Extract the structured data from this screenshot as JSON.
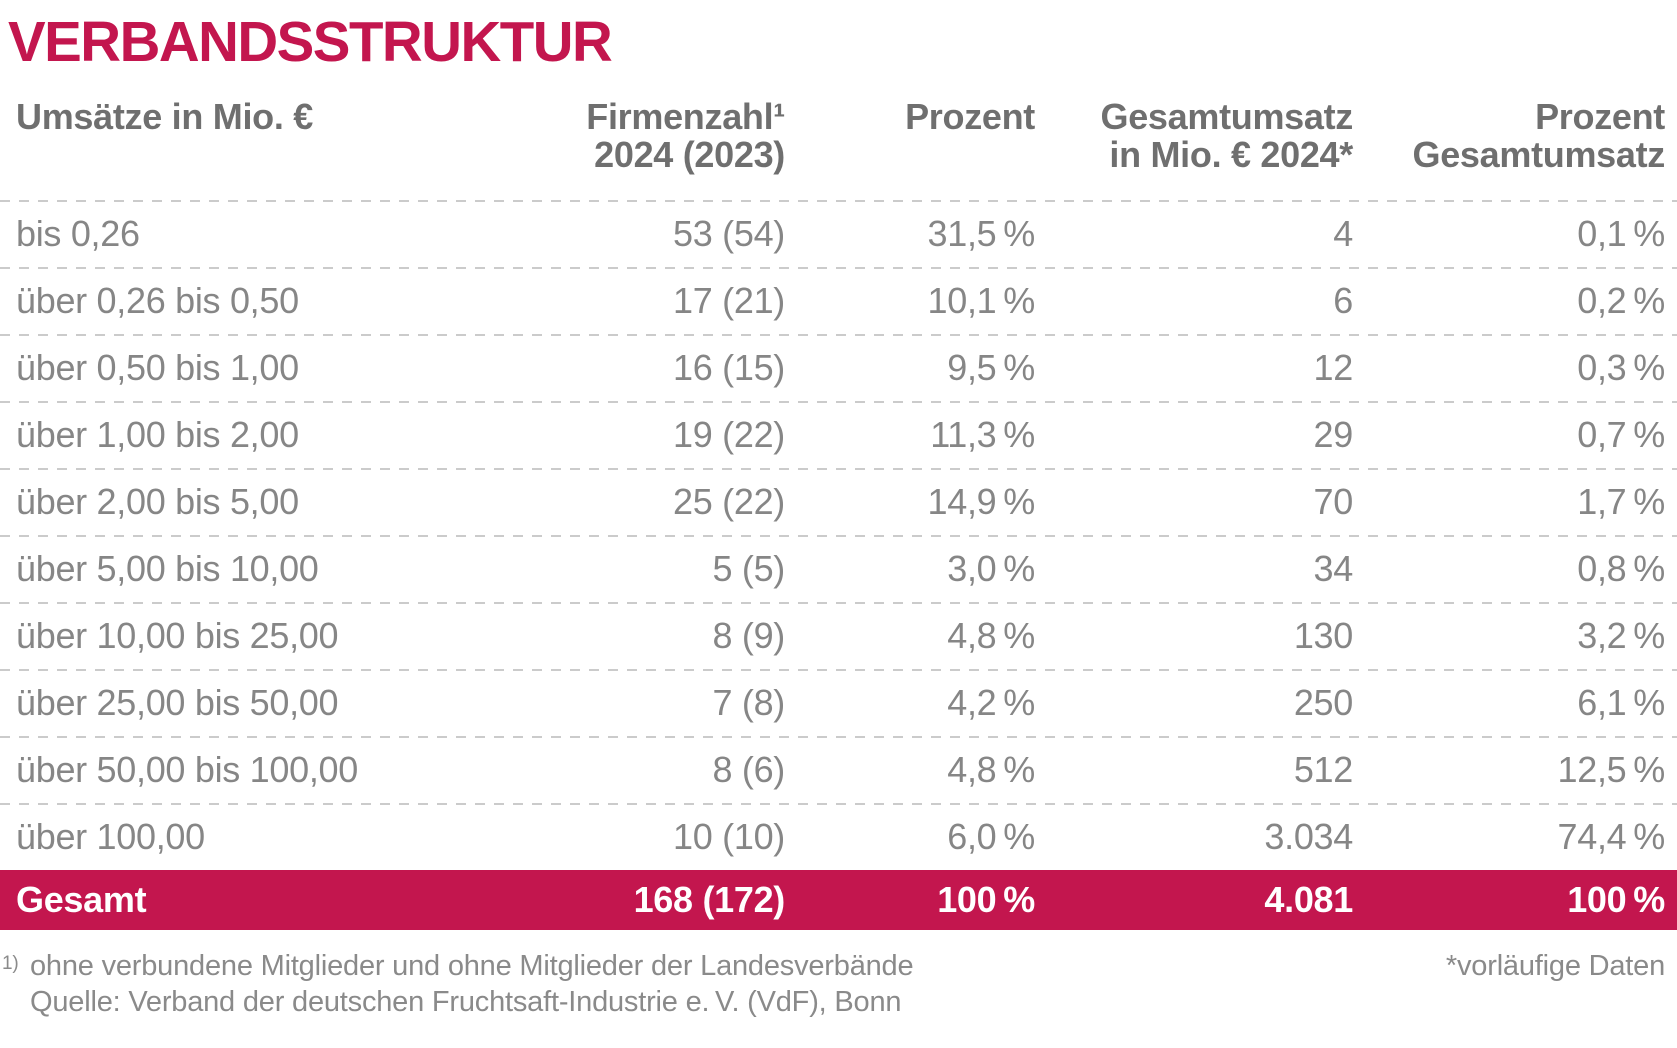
{
  "colors": {
    "accent": "#C3164E",
    "header_text": "#6F6F6F",
    "body_text": "#868686",
    "footnote_text": "#8A8A8A",
    "dash": "#CBCBCB",
    "total_text": "#FFFFFF"
  },
  "title": "VERBANDSSTRUKTUR",
  "table": {
    "header": {
      "col1_line1": "Umsätze in Mio. €",
      "col2_line1": "Firmenzahl¹",
      "col2_line2": "2024 (2023)",
      "col3_line1": "Prozent",
      "col4_line1": "Gesamtumsatz",
      "col4_line2": "in Mio. € 2024*",
      "col5_line1": "Prozent",
      "col5_line2": "Gesamtumsatz"
    },
    "rows": [
      {
        "range": "bis 0,26",
        "firms": "53 (54)",
        "percent": "31,5 %",
        "revenue": "4",
        "revenue_percent": "0,1 %"
      },
      {
        "range": "über 0,26 bis 0,50",
        "firms": "17 (21)",
        "percent": "10,1 %",
        "revenue": "6",
        "revenue_percent": "0,2 %"
      },
      {
        "range": "über 0,50 bis 1,00",
        "firms": "16 (15)",
        "percent": "9,5 %",
        "revenue": "12",
        "revenue_percent": "0,3 %"
      },
      {
        "range": "über 1,00 bis 2,00",
        "firms": "19 (22)",
        "percent": "11,3 %",
        "revenue": "29",
        "revenue_percent": "0,7 %"
      },
      {
        "range": "über 2,00 bis 5,00",
        "firms": "25 (22)",
        "percent": "14,9 %",
        "revenue": "70",
        "revenue_percent": "1,7 %"
      },
      {
        "range": "über 5,00 bis 10,00",
        "firms": "5 (5)",
        "percent": "3,0 %",
        "revenue": "34",
        "revenue_percent": "0,8 %"
      },
      {
        "range": "über 10,00 bis 25,00",
        "firms": "8 (9)",
        "percent": "4,8 %",
        "revenue": "130",
        "revenue_percent": "3,2 %"
      },
      {
        "range": "über 25,00 bis 50,00",
        "firms": "7 (8)",
        "percent": "4,2 %",
        "revenue": "250",
        "revenue_percent": "6,1 %"
      },
      {
        "range": "über 50,00 bis 100,00",
        "firms": "8 (6)",
        "percent": "4,8 %",
        "revenue": "512",
        "revenue_percent": "12,5 %"
      },
      {
        "range": "über 100,00",
        "firms": "10 (10)",
        "percent": "6,0 %",
        "revenue": "3.034",
        "revenue_percent": "74,4 %"
      }
    ],
    "total": {
      "range": "Gesamt",
      "firms": "168 (172)",
      "percent": "100 %",
      "revenue": "4.081",
      "revenue_percent": "100 %"
    }
  },
  "footnotes": {
    "marker": "1)",
    "note1": "ohne verbundene Mitglieder und ohne Mitglieder der Landesverbände",
    "note2": "Quelle: Verband der deutschen Fruchtsaft-Industrie e. V. (VdF), Bonn",
    "right_note": "*vorläufige Daten"
  },
  "chart_data": {
    "type": "table",
    "title": "VERBANDSSTRUKTUR",
    "columns": [
      "Umsätze in Mio. €",
      "Firmenzahl 2024 (2023)",
      "Prozent",
      "Gesamtumsatz in Mio. € 2024*",
      "Prozent Gesamtumsatz"
    ],
    "categories": [
      "bis 0,26",
      "über 0,26 bis 0,50",
      "über 0,50 bis 1,00",
      "über 1,00 bis 2,00",
      "über 2,00 bis 5,00",
      "über 5,00 bis 10,00",
      "über 10,00 bis 25,00",
      "über 25,00 bis 50,00",
      "über 50,00 bis 100,00",
      "über 100,00"
    ],
    "series": [
      {
        "name": "Firmenzahl 2024",
        "values": [
          53,
          17,
          16,
          19,
          25,
          5,
          8,
          7,
          8,
          10
        ]
      },
      {
        "name": "Firmenzahl 2023",
        "values": [
          54,
          21,
          15,
          22,
          22,
          5,
          9,
          8,
          6,
          10
        ]
      },
      {
        "name": "Prozent",
        "values": [
          31.5,
          10.1,
          9.5,
          11.3,
          14.9,
          3.0,
          4.8,
          4.2,
          4.8,
          6.0
        ]
      },
      {
        "name": "Gesamtumsatz in Mio. € 2024",
        "values": [
          4,
          6,
          12,
          29,
          70,
          34,
          130,
          250,
          512,
          3034
        ]
      },
      {
        "name": "Prozent Gesamtumsatz",
        "values": [
          0.1,
          0.2,
          0.3,
          0.7,
          1.7,
          0.8,
          3.2,
          6.1,
          12.5,
          74.4
        ]
      }
    ],
    "totals": {
      "firmenzahl_2024": 168,
      "firmenzahl_2023": 172,
      "prozent": 100,
      "gesamtumsatz_mio_eur_2024": 4081,
      "prozent_gesamtumsatz": 100
    },
    "footnote_1": "ohne verbundene Mitglieder und ohne Mitglieder der Landesverbände",
    "source": "Verband der deutschen Fruchtsaft-Industrie e. V. (VdF), Bonn",
    "asterisk_note": "vorläufige Daten"
  }
}
